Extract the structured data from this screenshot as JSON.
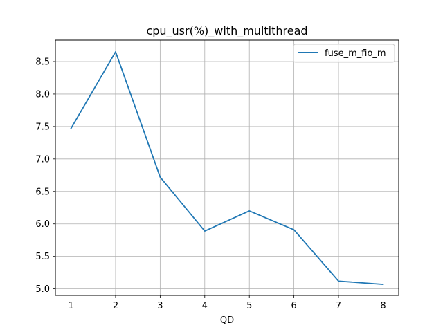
{
  "chart_data": {
    "type": "line",
    "title": "cpu_usr(%)_with_multithread",
    "xlabel": "QD",
    "ylabel": "",
    "x": [
      1,
      2,
      3,
      4,
      5,
      6,
      7,
      8
    ],
    "xlim": [
      0.65,
      8.35
    ],
    "ylim": [
      4.9,
      8.83
    ],
    "xticks": [
      "1",
      "2",
      "3",
      "4",
      "5",
      "6",
      "7",
      "8"
    ],
    "yticks": [
      "5.0",
      "5.5",
      "6.0",
      "6.5",
      "7.0",
      "7.5",
      "8.0",
      "8.5"
    ],
    "grid": true,
    "legend_position": "upper right",
    "series": [
      {
        "name": "fuse_m_fio_m",
        "color": "#1f77b4",
        "values": [
          7.47,
          8.65,
          6.72,
          5.89,
          6.2,
          5.91,
          5.12,
          5.07
        ]
      }
    ]
  }
}
